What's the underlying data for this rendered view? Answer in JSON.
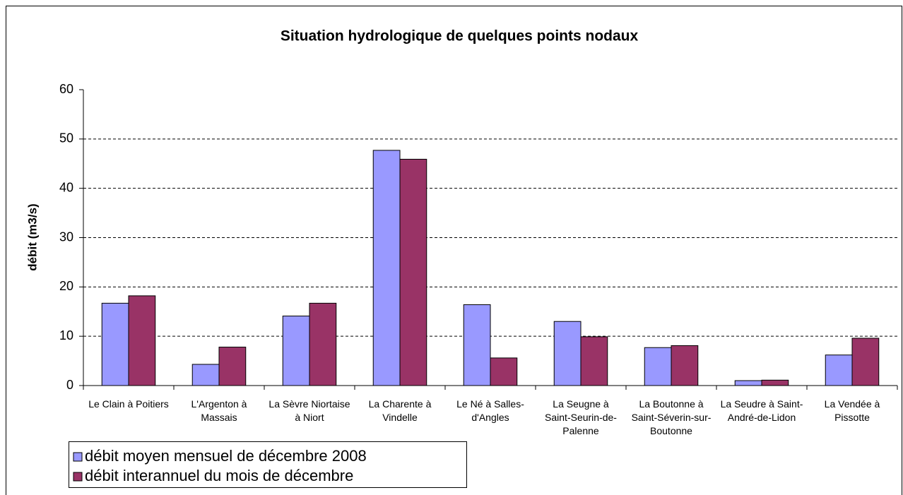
{
  "chart_data": {
    "type": "bar",
    "title": "Situation hydrologique de quelques points nodaux",
    "y_label": "débit (m3/s)",
    "categories": [
      "Le Clain à Poitiers",
      "L'Argenton à Massais",
      "La Sèvre Niortaise à Niort",
      "La Charente à Vindelle",
      "Le Né à Salles-d'Angles",
      "La Seugne à Saint-Seurin-de-Palenne",
      "La Boutonne à Saint-Séverin-sur-Boutonne",
      "La Seudre à Saint-André-de-Lidon",
      "La Vendée à Pissotte"
    ],
    "series": [
      {
        "name": "débit moyen mensuel de décembre 2008",
        "color": "#9999ff",
        "values": [
          16.7,
          4.3,
          14.1,
          47.7,
          16.4,
          13.0,
          7.7,
          1.0,
          6.2
        ]
      },
      {
        "name": "débit interannuel du mois de décembre",
        "color": "#993366",
        "values": [
          18.2,
          7.8,
          16.7,
          45.9,
          5.6,
          9.9,
          8.1,
          1.1,
          9.6
        ]
      }
    ],
    "ylim": [
      0,
      60
    ],
    "yticks": [
      0,
      10,
      20,
      30,
      40,
      50,
      60
    ],
    "grid": true,
    "legend": "bottom-left"
  }
}
